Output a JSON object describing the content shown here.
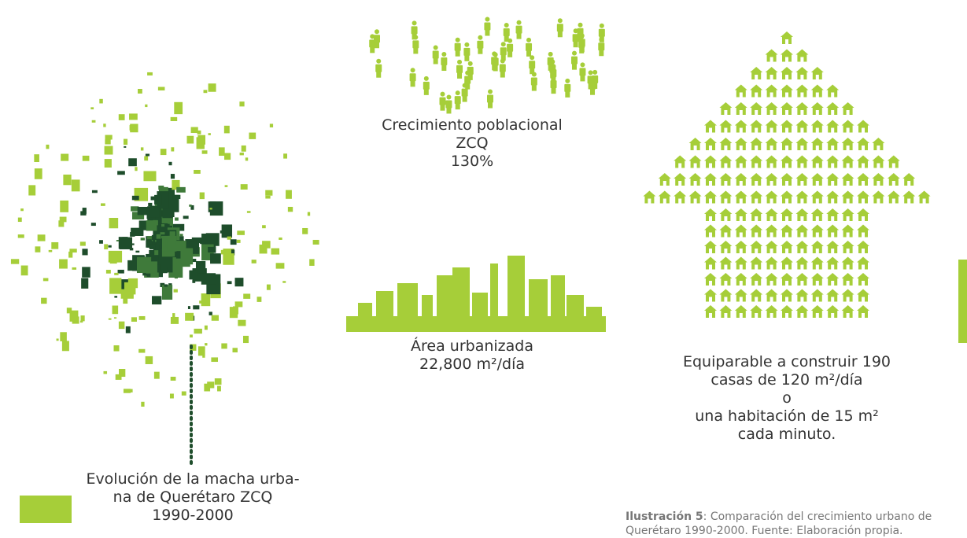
{
  "population": {
    "lines": [
      "Crecimiento poblacional",
      "ZCQ",
      "130%"
    ]
  },
  "urban_area": {
    "lines": [
      "Área urbanizada",
      "22,800 m²/día"
    ]
  },
  "houses": {
    "lines": [
      "Equiparable a construir 190",
      "casas de 120 m²/día",
      "o",
      "una habitación de 15 m²",
      "cada minuto."
    ]
  },
  "map": {
    "lines": [
      "Evolución de la macha urba-",
      "na de Querétaro ZCQ",
      "1990-2000"
    ]
  },
  "caption": {
    "label": "Ilustración 5",
    "lines": [
      ": Comparación del crecimiento urbano de",
      "Querétaro 1990-2000. Fuente: Elaboración propia."
    ]
  }
}
